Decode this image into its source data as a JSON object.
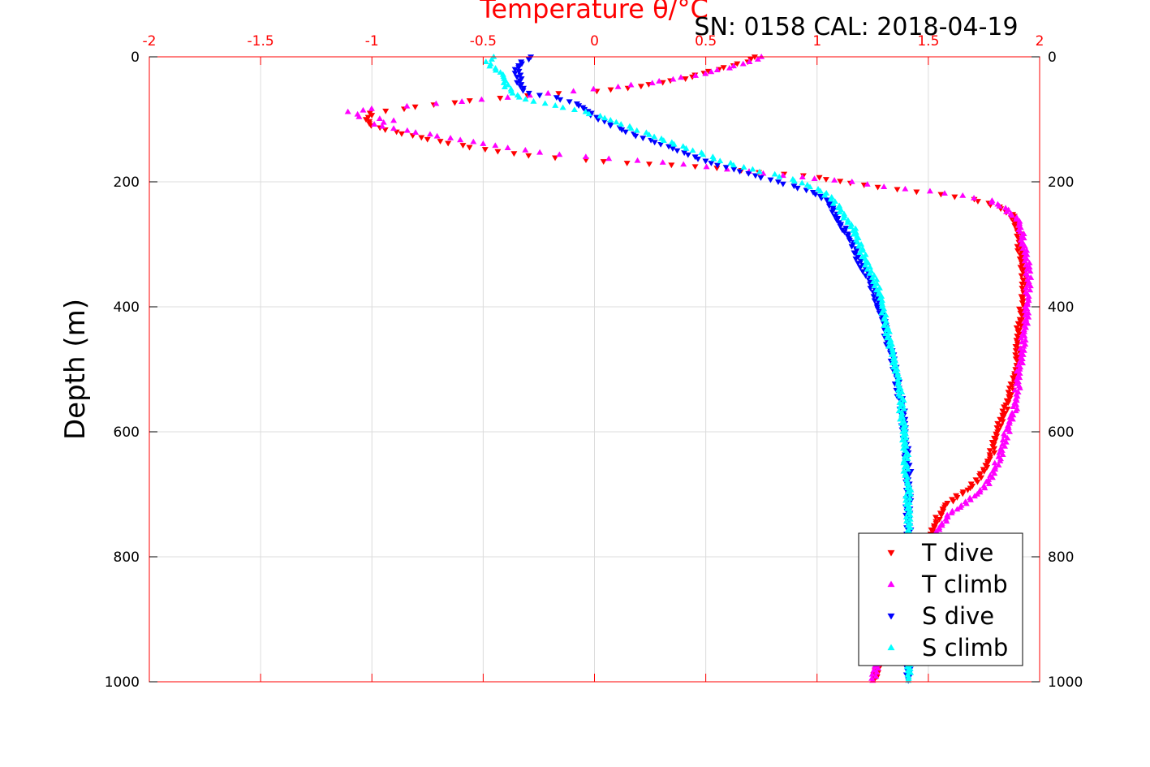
{
  "chart_data": {
    "type": "scatter",
    "title": "Temperature θ/°C",
    "subtitle": "SN: 0158  CAL: 2018-04-19",
    "xlabel": "Temperature θ/°C",
    "ylabel": "Depth (m)",
    "xlim": [
      -2,
      2
    ],
    "ylim": [
      0,
      1000
    ],
    "y_reversed": true,
    "x_ticks": [
      "-2",
      "-1.5",
      "-1",
      "-0.5",
      "0",
      "0.5",
      "1",
      "1.5",
      "2"
    ],
    "x_tick_values": [
      -2,
      -1.5,
      -1,
      -0.5,
      0,
      0.5,
      1,
      1.5,
      2
    ],
    "y_ticks": [
      "0",
      "200",
      "400",
      "600",
      "800",
      "1000"
    ],
    "y_tick_values": [
      0,
      200,
      400,
      600,
      800,
      1000
    ],
    "grid": true,
    "legend_position": "bottom-right",
    "colors": {
      "x_axis": "#ff0000",
      "T_dive": "#ff0000",
      "T_climb": "#ff00ff",
      "S_dive": "#0000ff",
      "S_climb": "#00ffff"
    },
    "series": [
      {
        "name": "T dive",
        "marker": "triangle-down",
        "color": "#ff0000",
        "points": [
          [
            0.72,
            0
          ],
          [
            0.68,
            8
          ],
          [
            0.55,
            20
          ],
          [
            0.4,
            35
          ],
          [
            0.15,
            50
          ],
          [
            0.0,
            55
          ],
          [
            -0.3,
            62
          ],
          [
            -0.55,
            70
          ],
          [
            -0.8,
            80
          ],
          [
            -1.0,
            90
          ],
          [
            -1.02,
            100
          ],
          [
            -1.0,
            110
          ],
          [
            -0.9,
            120
          ],
          [
            -0.7,
            135
          ],
          [
            -0.5,
            148
          ],
          [
            -0.3,
            158
          ],
          [
            -0.05,
            165
          ],
          [
            0.15,
            170
          ],
          [
            0.35,
            173
          ],
          [
            0.55,
            178
          ],
          [
            0.75,
            185
          ],
          [
            0.95,
            190
          ],
          [
            1.05,
            196
          ],
          [
            1.2,
            205
          ],
          [
            1.35,
            212
          ],
          [
            1.55,
            220
          ],
          [
            1.7,
            228
          ],
          [
            1.82,
            240
          ],
          [
            1.88,
            255
          ],
          [
            1.9,
            270
          ],
          [
            1.91,
            290
          ],
          [
            1.91,
            310
          ],
          [
            1.92,
            330
          ],
          [
            1.93,
            350
          ],
          [
            1.93,
            380
          ],
          [
            1.92,
            400
          ],
          [
            1.91,
            430
          ],
          [
            1.9,
            460
          ],
          [
            1.9,
            490
          ],
          [
            1.88,
            520
          ],
          [
            1.86,
            550
          ],
          [
            1.83,
            580
          ],
          [
            1.8,
            610
          ],
          [
            1.78,
            640
          ],
          [
            1.74,
            670
          ],
          [
            1.68,
            690
          ],
          [
            1.62,
            705
          ],
          [
            1.57,
            720
          ],
          [
            1.54,
            740
          ],
          [
            1.52,
            760
          ],
          [
            1.48,
            790
          ],
          [
            1.44,
            820
          ],
          [
            1.4,
            850
          ],
          [
            1.36,
            880
          ],
          [
            1.33,
            910
          ],
          [
            1.3,
            940
          ],
          [
            1.28,
            970
          ],
          [
            1.26,
            995
          ]
        ]
      },
      {
        "name": "T climb",
        "marker": "triangle-up",
        "color": "#ff00ff",
        "points": [
          [
            0.75,
            0
          ],
          [
            0.7,
            8
          ],
          [
            0.6,
            18
          ],
          [
            0.45,
            30
          ],
          [
            0.25,
            42
          ],
          [
            0.1,
            48
          ],
          [
            -0.1,
            55
          ],
          [
            -0.4,
            65
          ],
          [
            -0.7,
            75
          ],
          [
            -1.0,
            83
          ],
          [
            -1.1,
            88
          ],
          [
            -1.05,
            96
          ],
          [
            -0.9,
            102
          ],
          [
            -1.0,
            108
          ],
          [
            -0.85,
            118
          ],
          [
            -0.65,
            130
          ],
          [
            -0.45,
            142
          ],
          [
            -0.25,
            153
          ],
          [
            -0.05,
            160
          ],
          [
            0.2,
            166
          ],
          [
            0.4,
            172
          ],
          [
            0.6,
            180
          ],
          [
            0.85,
            190
          ],
          [
            1.0,
            195
          ],
          [
            1.15,
            200
          ],
          [
            1.3,
            208
          ],
          [
            1.5,
            215
          ],
          [
            1.65,
            222
          ],
          [
            1.78,
            230
          ],
          [
            1.85,
            245
          ],
          [
            1.9,
            260
          ],
          [
            1.92,
            280
          ],
          [
            1.93,
            300
          ],
          [
            1.94,
            320
          ],
          [
            1.95,
            350
          ],
          [
            1.95,
            380
          ],
          [
            1.94,
            410
          ],
          [
            1.93,
            440
          ],
          [
            1.92,
            470
          ],
          [
            1.91,
            500
          ],
          [
            1.9,
            530
          ],
          [
            1.89,
            560
          ],
          [
            1.86,
            590
          ],
          [
            1.84,
            620
          ],
          [
            1.81,
            650
          ],
          [
            1.77,
            680
          ],
          [
            1.72,
            700
          ],
          [
            1.66,
            715
          ],
          [
            1.6,
            730
          ],
          [
            1.56,
            750
          ],
          [
            1.52,
            770
          ],
          [
            1.48,
            800
          ],
          [
            1.43,
            830
          ],
          [
            1.39,
            860
          ],
          [
            1.35,
            890
          ],
          [
            1.31,
            920
          ],
          [
            1.29,
            950
          ],
          [
            1.27,
            975
          ],
          [
            1.25,
            998
          ]
        ]
      },
      {
        "name": "S dive",
        "marker": "triangle-down",
        "color": "#0000ff",
        "points": [
          [
            -0.28,
            0
          ],
          [
            -0.32,
            8
          ],
          [
            -0.35,
            20
          ],
          [
            -0.34,
            35
          ],
          [
            -0.33,
            50
          ],
          [
            -0.3,
            58
          ],
          [
            -0.18,
            65
          ],
          [
            -0.08,
            75
          ],
          [
            -0.02,
            90
          ],
          [
            0.02,
            100
          ],
          [
            0.08,
            110
          ],
          [
            0.15,
            120
          ],
          [
            0.22,
            130
          ],
          [
            0.3,
            140
          ],
          [
            0.38,
            150
          ],
          [
            0.45,
            160
          ],
          [
            0.52,
            170
          ],
          [
            0.62,
            180
          ],
          [
            0.72,
            190
          ],
          [
            0.82,
            200
          ],
          [
            0.92,
            210
          ],
          [
            1.0,
            220
          ],
          [
            1.05,
            232
          ],
          [
            1.08,
            248
          ],
          [
            1.1,
            265
          ],
          [
            1.13,
            280
          ],
          [
            1.16,
            300
          ],
          [
            1.18,
            320
          ],
          [
            1.21,
            340
          ],
          [
            1.24,
            360
          ],
          [
            1.26,
            380
          ],
          [
            1.28,
            400
          ],
          [
            1.3,
            420
          ],
          [
            1.31,
            440
          ],
          [
            1.32,
            460
          ],
          [
            1.34,
            480
          ],
          [
            1.35,
            500
          ],
          [
            1.36,
            520
          ],
          [
            1.37,
            540
          ],
          [
            1.38,
            560
          ],
          [
            1.39,
            580
          ],
          [
            1.39,
            600
          ],
          [
            1.4,
            620
          ],
          [
            1.4,
            640
          ],
          [
            1.41,
            660
          ],
          [
            1.41,
            680
          ],
          [
            1.41,
            700
          ],
          [
            1.41,
            720
          ],
          [
            1.41,
            740
          ],
          [
            1.41,
            760
          ],
          [
            1.41,
            790
          ],
          [
            1.41,
            820
          ],
          [
            1.41,
            850
          ],
          [
            1.41,
            880
          ],
          [
            1.41,
            910
          ],
          [
            1.41,
            940
          ],
          [
            1.41,
            970
          ],
          [
            1.41,
            998
          ]
        ]
      },
      {
        "name": "S climb",
        "marker": "triangle-up",
        "color": "#00ffff",
        "points": [
          [
            -0.45,
            0
          ],
          [
            -0.48,
            8
          ],
          [
            -0.47,
            15
          ],
          [
            -0.42,
            25
          ],
          [
            -0.4,
            35
          ],
          [
            -0.4,
            45
          ],
          [
            -0.38,
            55
          ],
          [
            -0.32,
            68
          ],
          [
            -0.18,
            78
          ],
          [
            -0.05,
            88
          ],
          [
            0.05,
            98
          ],
          [
            0.12,
            108
          ],
          [
            0.2,
            118
          ],
          [
            0.28,
            128
          ],
          [
            0.36,
            140
          ],
          [
            0.45,
            150
          ],
          [
            0.52,
            160
          ],
          [
            0.6,
            170
          ],
          [
            0.7,
            180
          ],
          [
            0.8,
            188
          ],
          [
            0.88,
            196
          ],
          [
            0.95,
            205
          ],
          [
            1.02,
            215
          ],
          [
            1.07,
            228
          ],
          [
            1.1,
            242
          ],
          [
            1.13,
            258
          ],
          [
            1.16,
            272
          ],
          [
            1.18,
            290
          ],
          [
            1.2,
            310
          ],
          [
            1.22,
            330
          ],
          [
            1.25,
            350
          ],
          [
            1.27,
            370
          ],
          [
            1.29,
            390
          ],
          [
            1.3,
            410
          ],
          [
            1.31,
            430
          ],
          [
            1.32,
            450
          ],
          [
            1.34,
            470
          ],
          [
            1.35,
            490
          ],
          [
            1.36,
            510
          ],
          [
            1.37,
            530
          ],
          [
            1.38,
            550
          ],
          [
            1.38,
            570
          ],
          [
            1.39,
            590
          ],
          [
            1.39,
            610
          ],
          [
            1.4,
            630
          ],
          [
            1.4,
            650
          ],
          [
            1.4,
            670
          ],
          [
            1.41,
            690
          ],
          [
            1.41,
            710
          ],
          [
            1.41,
            730
          ],
          [
            1.41,
            760
          ],
          [
            1.41,
            790
          ],
          [
            1.41,
            820
          ],
          [
            1.41,
            850
          ],
          [
            1.41,
            880
          ],
          [
            1.41,
            910
          ],
          [
            1.41,
            940
          ],
          [
            1.41,
            970
          ],
          [
            1.41,
            998
          ]
        ]
      }
    ]
  }
}
